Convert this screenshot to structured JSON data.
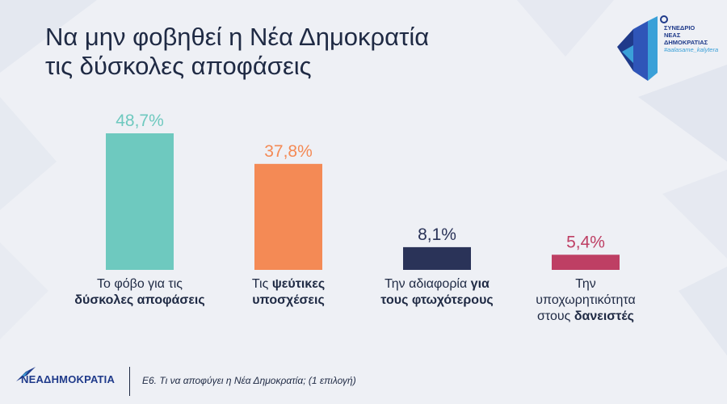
{
  "header": {
    "title_line1": "Να μην φοβηθεί η Νέα Δημοκρατία",
    "title_line2": "τις δύσκολες αποφάσεις"
  },
  "logo": {
    "line1": "ΣΥΝΕΔΡΙΟ",
    "line2": "ΝΕΑΣ",
    "line3": "ΔΗΜΟΚΡΑΤΙΑΣ",
    "tag": "#aalasame_kalytera",
    "icon": "nd-congress-logo"
  },
  "chart_data": {
    "type": "bar",
    "categories": [
      "Το φόβο για τις δύσκολες αποφάσεις",
      "Τις ψεύτικες υποσχέσεις",
      "Την αδιαφορία για τους φτωχότερους",
      "Την υποχωρητικότητα στους δανειστές"
    ],
    "category_parts": [
      [
        {
          "text": "Το φόβο για τις",
          "bold": false
        },
        {
          "text": "\n",
          "bold": false
        },
        {
          "text": "δύσκολες αποφάσεις",
          "bold": true
        }
      ],
      [
        {
          "text": "Τις ",
          "bold": false
        },
        {
          "text": "ψεύτικες",
          "bold": true
        },
        {
          "text": "\n",
          "bold": false
        },
        {
          "text": "υποσχέσεις",
          "bold": true
        }
      ],
      [
        {
          "text": "Την αδιαφορία ",
          "bold": false
        },
        {
          "text": "για",
          "bold": true
        },
        {
          "text": "\n",
          "bold": false
        },
        {
          "text": "τους φτωχότερους",
          "bold": true
        }
      ],
      [
        {
          "text": "Την",
          "bold": false
        },
        {
          "text": "\n",
          "bold": false
        },
        {
          "text": "υποχωρητικότητα",
          "bold": false
        },
        {
          "text": "\n",
          "bold": false
        },
        {
          "text": "στους ",
          "bold": false
        },
        {
          "text": "δανειστές",
          "bold": true
        }
      ]
    ],
    "values": [
      48.7,
      37.8,
      8.1,
      5.4
    ],
    "value_labels": [
      "48,7%",
      "37,8%",
      "8,1%",
      "5,4%"
    ],
    "colors": [
      "#6ec9bf",
      "#f48a55",
      "#2a3358",
      "#be3f64"
    ],
    "ylim": [
      0,
      50
    ]
  },
  "footer": {
    "brand": "ΝΕΑΔΗΜΟΚΡΑΤΙΑ",
    "note": "Ε6. Τι να αποφύγει η Νέα Δημοκρατία; (1 επιλογή)",
    "icon": "nd-torch-logo"
  }
}
